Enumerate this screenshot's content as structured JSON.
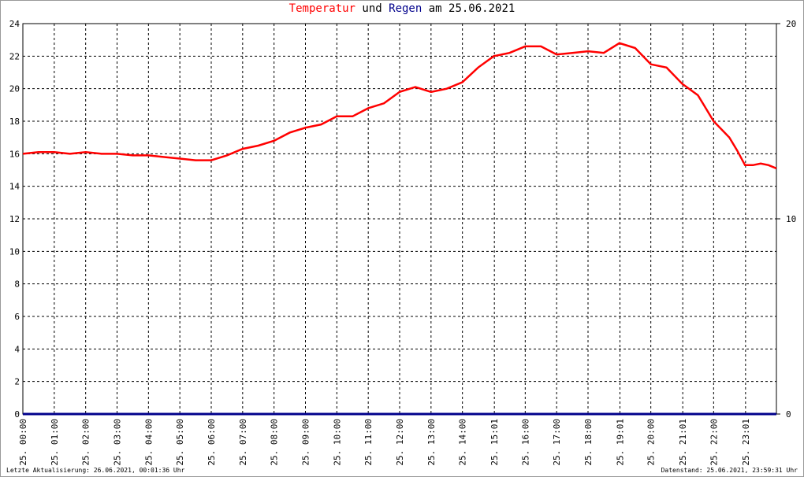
{
  "chart_data": {
    "type": "line",
    "title_parts": [
      "und",
      "am 25.06.2021"
    ],
    "footer_left": "Letzte Aktualisierung: 26.06.2021, 00:01:36 Uhr",
    "footer_right": "Datenstand: 25.06.2021, 23:59:31 Uhr",
    "xlim": [
      0,
      24
    ],
    "xticks": [
      {
        "value": 0,
        "label": "25. 00:00"
      },
      {
        "value": 1,
        "label": "25. 01:00"
      },
      {
        "value": 2,
        "label": "25. 02:00"
      },
      {
        "value": 3,
        "label": "25. 03:00"
      },
      {
        "value": 4,
        "label": "25. 04:00"
      },
      {
        "value": 5,
        "label": "25. 05:00"
      },
      {
        "value": 6,
        "label": "25. 06:00"
      },
      {
        "value": 7,
        "label": "25. 07:00"
      },
      {
        "value": 8,
        "label": "25. 08:00"
      },
      {
        "value": 9,
        "label": "25. 09:00"
      },
      {
        "value": 10,
        "label": "25. 10:00"
      },
      {
        "value": 11,
        "label": "25. 11:00"
      },
      {
        "value": 12,
        "label": "25. 12:00"
      },
      {
        "value": 13,
        "label": "25. 13:00"
      },
      {
        "value": 14,
        "label": "25. 14:00"
      },
      {
        "value": 15.017,
        "label": "25. 15:01"
      },
      {
        "value": 16,
        "label": "25. 16:00"
      },
      {
        "value": 17,
        "label": "25. 17:00"
      },
      {
        "value": 18,
        "label": "25. 18:00"
      },
      {
        "value": 19.017,
        "label": "25. 19:01"
      },
      {
        "value": 20,
        "label": "25. 20:00"
      },
      {
        "value": 21.017,
        "label": "25. 21:01"
      },
      {
        "value": 22,
        "label": "25. 22:00"
      },
      {
        "value": 23.017,
        "label": "25. 23:01"
      }
    ],
    "ylim": [
      0,
      24
    ],
    "yticks": [
      0,
      2,
      4,
      6,
      8,
      10,
      12,
      14,
      16,
      18,
      20,
      22,
      24
    ],
    "y2lim": [
      0,
      20
    ],
    "y2ticks": [
      0,
      10,
      20
    ],
    "grid": true,
    "series": [
      {
        "name": "Temperatur",
        "color": "#ff0000",
        "x": [
          0,
          0.5,
          1,
          1.5,
          2,
          2.5,
          3,
          3.5,
          4,
          4.5,
          5,
          5.5,
          6,
          6.5,
          7,
          7.5,
          8,
          8.5,
          9,
          9.5,
          10,
          10.5,
          11,
          11.5,
          12,
          12.5,
          13,
          13.5,
          14,
          14.5,
          15,
          15.5,
          16,
          16.5,
          17,
          17.5,
          18,
          18.5,
          19,
          19.5,
          20,
          20.5,
          21,
          21.5,
          22,
          22.5,
          22.75,
          23,
          23.25,
          23.5,
          23.75,
          24
        ],
        "values": [
          16.0,
          16.1,
          16.1,
          16.0,
          16.1,
          16.0,
          16.0,
          15.9,
          15.9,
          15.8,
          15.7,
          15.6,
          15.6,
          15.9,
          16.3,
          16.5,
          16.8,
          17.3,
          17.6,
          17.8,
          18.3,
          18.3,
          18.8,
          19.1,
          19.8,
          20.1,
          19.8,
          20.0,
          20.4,
          21.3,
          22.0,
          22.2,
          22.6,
          22.6,
          22.1,
          22.2,
          22.3,
          22.2,
          22.8,
          22.5,
          21.5,
          21.3,
          20.3,
          19.6,
          18.0,
          17.0,
          16.2,
          15.3,
          15.3,
          15.4,
          15.3,
          15.1
        ]
      },
      {
        "name": "Regen",
        "color": "#00008b",
        "axis": "y2",
        "x": [
          0,
          24
        ],
        "values": [
          0,
          0
        ]
      }
    ]
  }
}
